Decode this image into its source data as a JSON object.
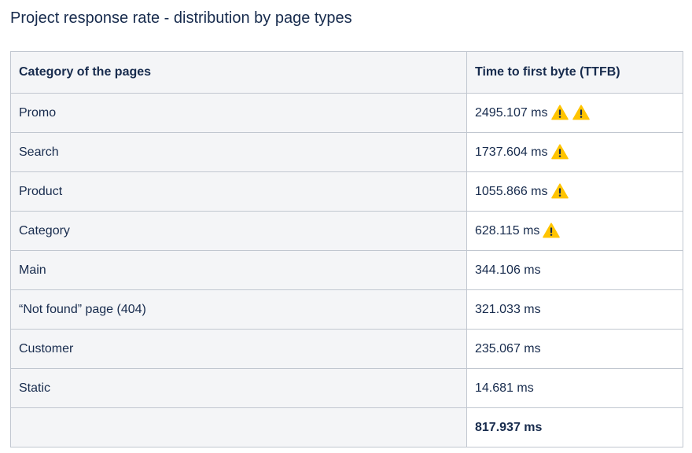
{
  "page": {
    "title": "Project response rate - distribution by page types"
  },
  "table": {
    "headers": {
      "category": "Category of the pages",
      "ttfb": "Time to first byte (TTFB)"
    },
    "rows": [
      {
        "category": "Promo",
        "value": "2495.107 ms",
        "warnings": 2
      },
      {
        "category": "Search",
        "value": "1737.604 ms",
        "warnings": 1
      },
      {
        "category": "Product",
        "value": "1055.866 ms",
        "warnings": 1
      },
      {
        "category": "Category",
        "value": "628.115 ms",
        "warnings": 1
      },
      {
        "category": "Main",
        "value": "344.106 ms",
        "warnings": 0
      },
      {
        "category": "“Not found” page (404)",
        "value": "321.033 ms",
        "warnings": 0
      },
      {
        "category": "Customer",
        "value": "235.067 ms",
        "warnings": 0
      },
      {
        "category": "Static",
        "value": "14.681 ms",
        "warnings": 0
      }
    ],
    "total": {
      "category": "",
      "value": "817.937 ms"
    }
  },
  "icons": {
    "warning": "warning-icon"
  },
  "colors": {
    "warning_fill": "#ffc400",
    "warning_mark": "#172b4d",
    "header_bg": "#f4f5f7",
    "border": "#c1c7d0",
    "text": "#172b4d"
  }
}
